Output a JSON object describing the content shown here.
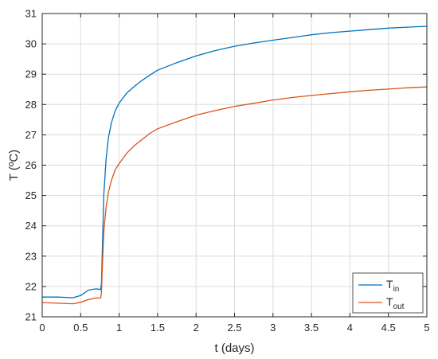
{
  "chart_data": {
    "type": "line",
    "title": "",
    "xlabel": "t (days)",
    "ylabel": "T (ºC)",
    "xlim": [
      0,
      5
    ],
    "ylim": [
      21,
      31
    ],
    "xticks": [
      0,
      0.5,
      1,
      1.5,
      2,
      2.5,
      3,
      3.5,
      4,
      4.5,
      5
    ],
    "xtick_labels": [
      "0",
      "0.5",
      "1",
      "1.5",
      "2",
      "2.5",
      "3",
      "3.5",
      "4",
      "4.5",
      "5"
    ],
    "yticks": [
      21,
      22,
      23,
      24,
      25,
      26,
      27,
      28,
      29,
      30,
      31
    ],
    "ytick_labels": [
      "21",
      "22",
      "23",
      "24",
      "25",
      "26",
      "27",
      "28",
      "29",
      "30",
      "31"
    ],
    "grid": true,
    "legend_position": "bottom-right",
    "series": [
      {
        "name": "T",
        "name_sub": "in",
        "color": "#0072BD",
        "points": [
          [
            0,
            21.65
          ],
          [
            0.2,
            21.65
          ],
          [
            0.4,
            21.63
          ],
          [
            0.5,
            21.7
          ],
          [
            0.6,
            21.88
          ],
          [
            0.7,
            21.92
          ],
          [
            0.76,
            21.9
          ],
          [
            0.77,
            22.1
          ],
          [
            0.78,
            23.0
          ],
          [
            0.8,
            25.0
          ],
          [
            0.83,
            26.2
          ],
          [
            0.86,
            26.9
          ],
          [
            0.9,
            27.4
          ],
          [
            0.95,
            27.8
          ],
          [
            1.0,
            28.05
          ],
          [
            1.1,
            28.38
          ],
          [
            1.2,
            28.6
          ],
          [
            1.3,
            28.8
          ],
          [
            1.4,
            28.97
          ],
          [
            1.5,
            29.13
          ],
          [
            1.75,
            29.38
          ],
          [
            2.0,
            29.6
          ],
          [
            2.25,
            29.78
          ],
          [
            2.5,
            29.92
          ],
          [
            2.75,
            30.03
          ],
          [
            3.0,
            30.12
          ],
          [
            3.25,
            30.21
          ],
          [
            3.5,
            30.3
          ],
          [
            3.75,
            30.37
          ],
          [
            4.0,
            30.42
          ],
          [
            4.25,
            30.47
          ],
          [
            4.5,
            30.52
          ],
          [
            4.75,
            30.55
          ],
          [
            5.0,
            30.58
          ]
        ]
      },
      {
        "name": "T",
        "name_sub": "out",
        "color": "#D95319",
        "points": [
          [
            0,
            21.47
          ],
          [
            0.2,
            21.45
          ],
          [
            0.4,
            21.43
          ],
          [
            0.5,
            21.48
          ],
          [
            0.6,
            21.57
          ],
          [
            0.7,
            21.62
          ],
          [
            0.76,
            21.62
          ],
          [
            0.77,
            21.8
          ],
          [
            0.78,
            22.5
          ],
          [
            0.8,
            23.8
          ],
          [
            0.83,
            24.6
          ],
          [
            0.86,
            25.1
          ],
          [
            0.9,
            25.5
          ],
          [
            0.95,
            25.85
          ],
          [
            1.0,
            26.05
          ],
          [
            1.1,
            26.4
          ],
          [
            1.2,
            26.65
          ],
          [
            1.3,
            26.85
          ],
          [
            1.4,
            27.05
          ],
          [
            1.5,
            27.2
          ],
          [
            1.75,
            27.43
          ],
          [
            2.0,
            27.65
          ],
          [
            2.25,
            27.8
          ],
          [
            2.5,
            27.94
          ],
          [
            2.75,
            28.04
          ],
          [
            3.0,
            28.15
          ],
          [
            3.25,
            28.23
          ],
          [
            3.5,
            28.3
          ],
          [
            3.75,
            28.36
          ],
          [
            4.0,
            28.42
          ],
          [
            4.25,
            28.47
          ],
          [
            4.5,
            28.51
          ],
          [
            4.75,
            28.55
          ],
          [
            5.0,
            28.58
          ]
        ]
      }
    ]
  }
}
